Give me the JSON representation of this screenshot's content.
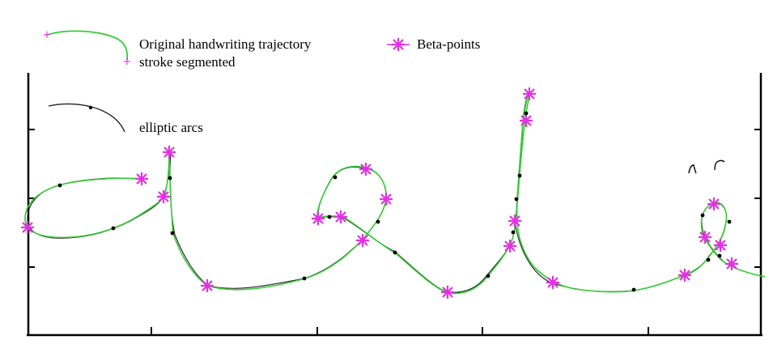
{
  "figure": {
    "legend": {
      "original_label": "Original handwriting trajectory",
      "segmented_label": "stroke segmented",
      "beta_label": "Beta-points",
      "elliptic_label": "elliptic arcs"
    },
    "colors": {
      "trajectory": "#33cc33",
      "beta_points": "#e62ee6",
      "elliptic_arcs": "#222222",
      "axes": "#000000"
    },
    "icons": {
      "beta_marker": "asterisk-star-icon",
      "arc_point": "dot-icon"
    }
  }
}
